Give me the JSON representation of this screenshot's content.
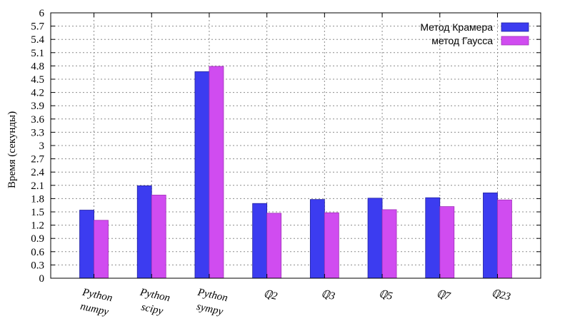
{
  "chart_data": {
    "type": "bar",
    "ylabel": "Время (секунды)",
    "ylim": [
      0,
      6
    ],
    "yticks": [
      "0",
      "0.3",
      "0.6",
      "0.9",
      "1.2",
      "1.5",
      "1.8",
      "2.1",
      "2.4",
      "2.7",
      "3",
      "3.3",
      "3.6",
      "3.9",
      "4.2",
      "4.5",
      "4.8",
      "5.1",
      "5.4",
      "5.7",
      "6"
    ],
    "grid": true,
    "legend_position": "top-right",
    "categories": [
      {
        "lines": [
          "Python",
          "numpy"
        ]
      },
      {
        "lines": [
          "Python",
          "scipy"
        ]
      },
      {
        "lines": [
          "Python",
          "sympy"
        ]
      },
      {
        "lines": [
          "ℚ2"
        ]
      },
      {
        "lines": [
          "ℚ3"
        ]
      },
      {
        "lines": [
          "ℚ5"
        ]
      },
      {
        "lines": [
          "ℚ7"
        ]
      },
      {
        "lines": [
          "ℚ23"
        ]
      }
    ],
    "series": [
      {
        "name": "Метод Крамера",
        "color": "#3c3cf0",
        "values": [
          1.54,
          2.09,
          4.67,
          1.69,
          1.78,
          1.81,
          1.82,
          1.93
        ]
      },
      {
        "name": "метод Гаусса",
        "color": "#d04cf0",
        "values": [
          1.31,
          1.88,
          4.79,
          1.47,
          1.48,
          1.55,
          1.62,
          1.77
        ]
      }
    ]
  }
}
